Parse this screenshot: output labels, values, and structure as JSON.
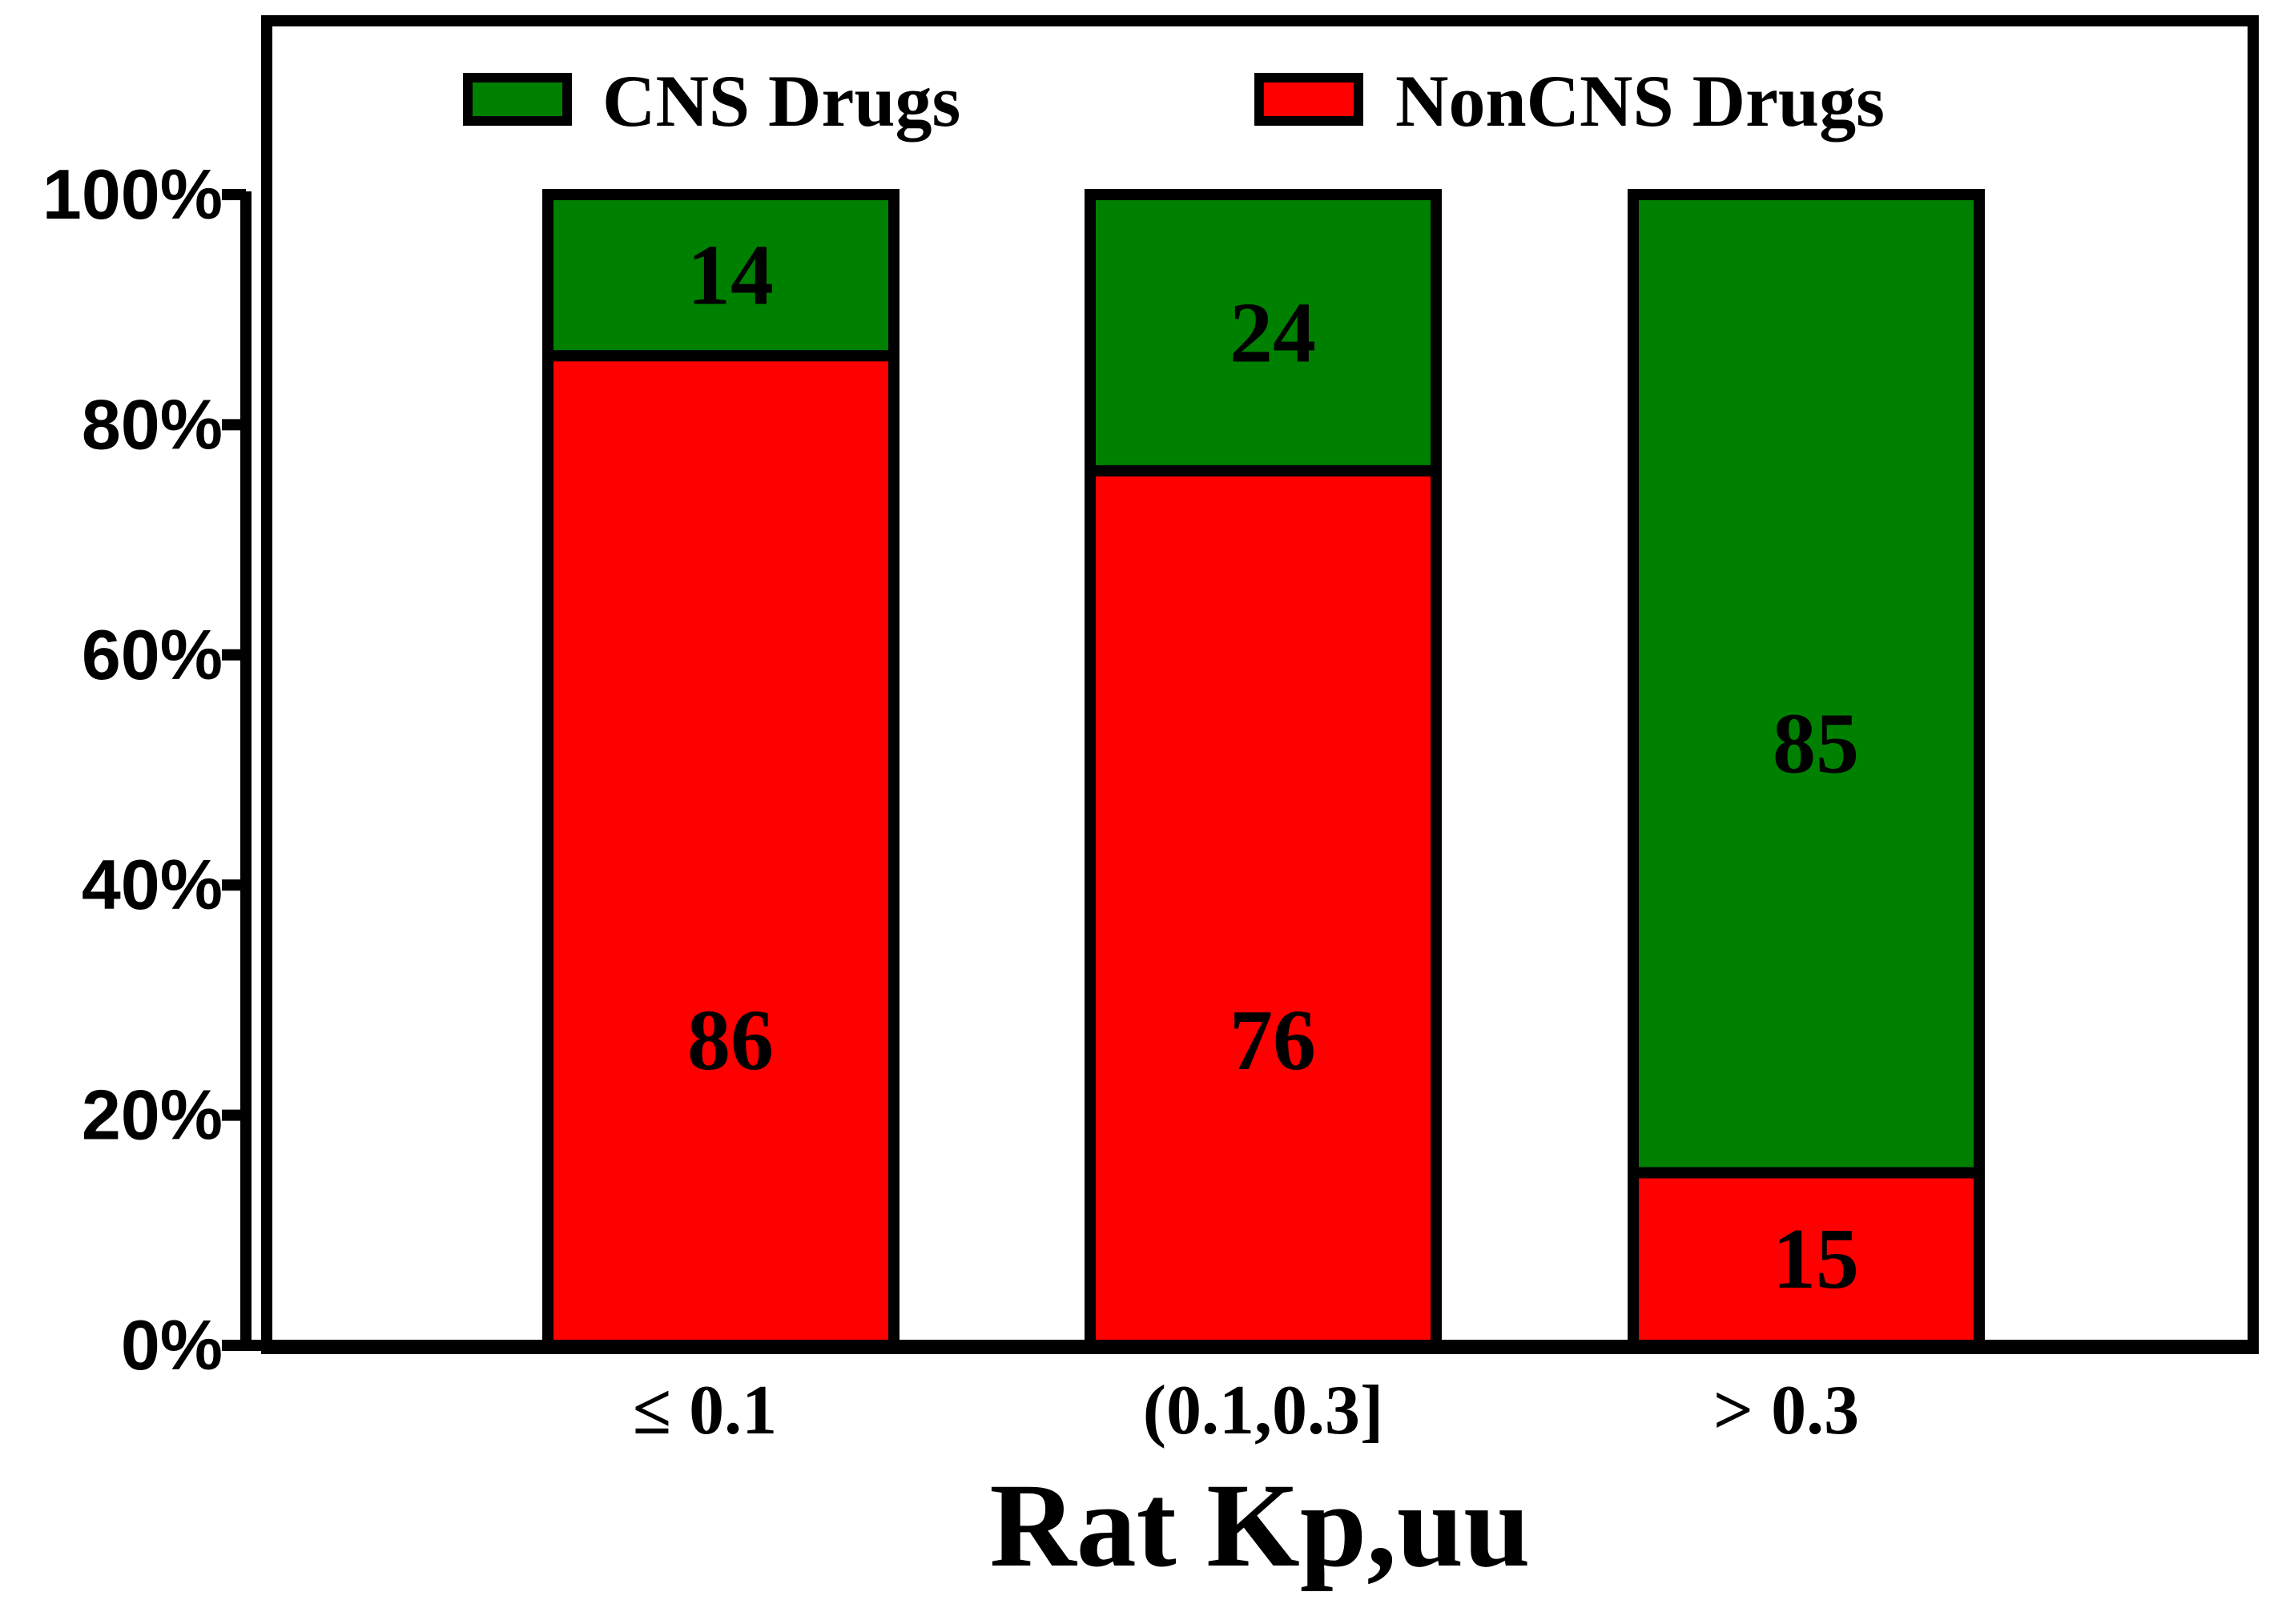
{
  "chart_data": {
    "type": "bar",
    "stacked": true,
    "categories": [
      "≤ 0.1",
      "(0.1,0.3]",
      "> 0.3"
    ],
    "series": [
      {
        "name": "NonCNS Drugs",
        "color": "#ff0000",
        "values": [
          86,
          76,
          15
        ],
        "labels": [
          "86",
          "76",
          "15"
        ]
      },
      {
        "name": "CNS Drugs",
        "color": "#008000",
        "values": [
          14,
          24,
          85
        ],
        "labels": [
          "14",
          "24",
          "85"
        ]
      }
    ],
    "legend_order": [
      1,
      0
    ],
    "legend_position": "top",
    "xlabel": "Rat Kp,uu",
    "ylabel": "",
    "ylim": [
      0,
      100
    ],
    "yticks": [
      "0%",
      "20%",
      "40%",
      "60%",
      "80%",
      "100%"
    ],
    "grid": false
  }
}
